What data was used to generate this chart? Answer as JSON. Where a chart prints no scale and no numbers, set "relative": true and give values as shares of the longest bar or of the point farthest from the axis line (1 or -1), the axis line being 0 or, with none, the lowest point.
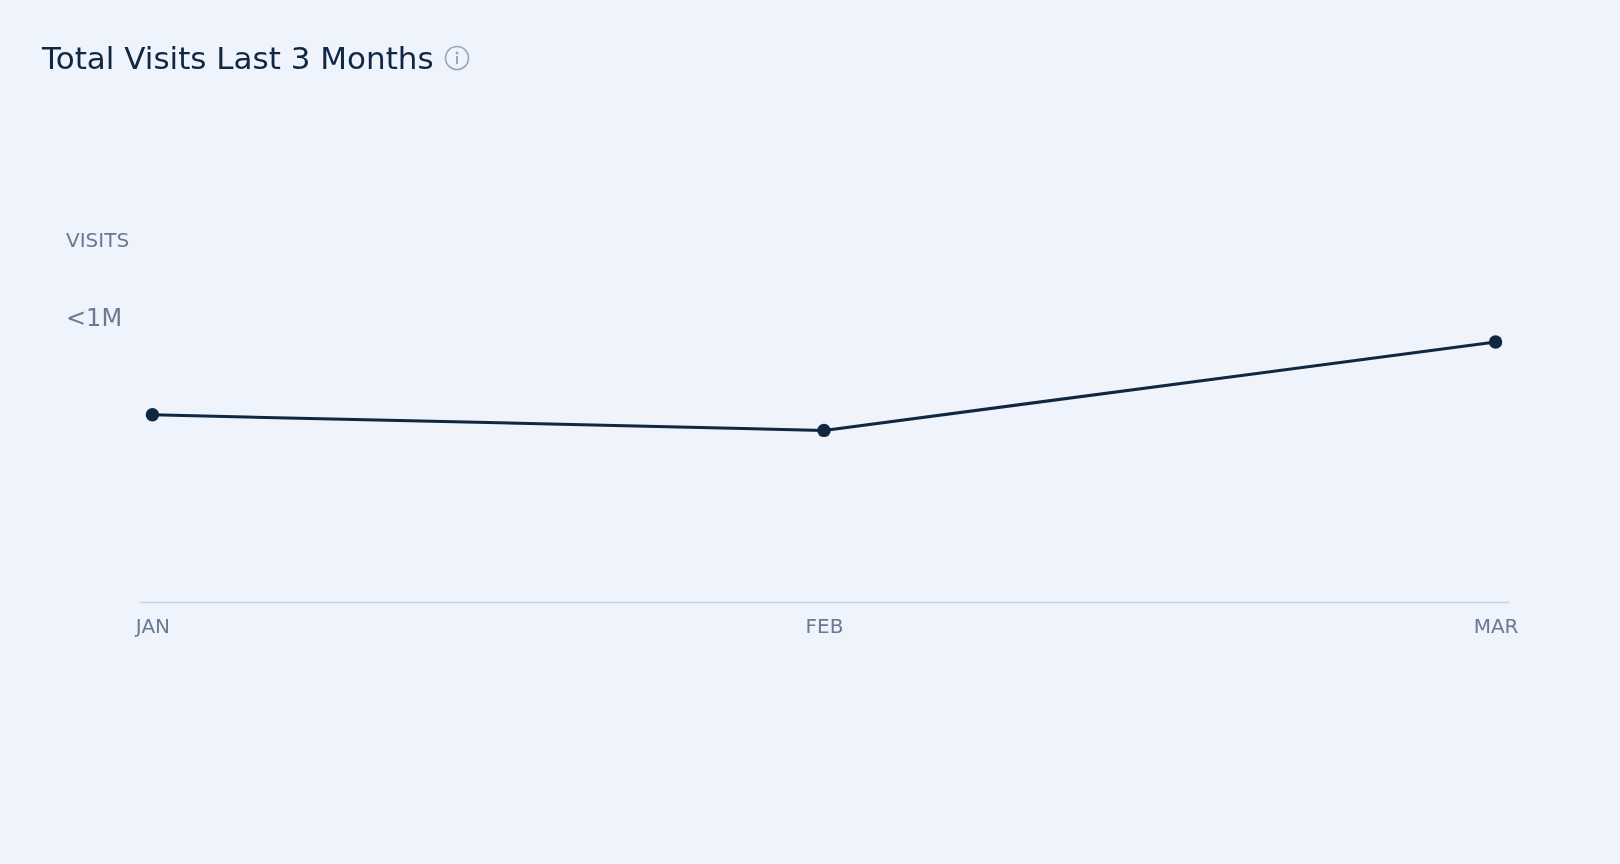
{
  "chart_data": {
    "type": "line",
    "title": "Total Visits Last 3 Months",
    "ylabel": "VISITS",
    "categories": [
      "JAN",
      "FEB",
      "MAR"
    ],
    "series": [
      {
        "color": "#0f2741",
        "values": [
          0.72,
          0.66,
          1
        ]
      }
    ],
    "relative": true,
    "marker": "circle",
    "line_style": "solid",
    "legend": false,
    "annotations": [
      "<1M"
    ]
  }
}
